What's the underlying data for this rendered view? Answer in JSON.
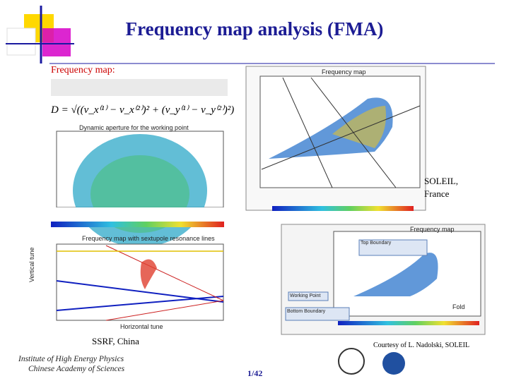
{
  "header": {
    "title": "Frequency map analysis (FMA)"
  },
  "body": {
    "frequency_map_label": "Frequency map:",
    "formula": "D = √((ν_x⁽¹⁾ − ν_x⁽²⁾)² + (ν_y⁽¹⁾ − ν_y⁽²⁾)²)",
    "soleil_caption": "SOLEIL, France",
    "ssrf_caption": "SSRF, China",
    "courtesy": "Courtesy of L. Nadolski, SOLEIL"
  },
  "figures": {
    "aperture_title": "Dynamic aperture for the working point",
    "ssrf_title": "Frequency map with sextupole resonance lines",
    "ssrf_ylabel": "Vertical tune",
    "ssrf_xlabel": "Horizontal tune",
    "soleil_top_title": "Frequency map",
    "soleil_bottom_title": "Frequency map",
    "top_boundary": "Top Boundary",
    "working_point": "Working Point",
    "bottom_boundary": "Bottom Boundary",
    "fold": "Fold"
  },
  "footer": {
    "institute": "Institute of High Energy Physics",
    "academy": "Chinese Academy of Sciences",
    "page": "1/42"
  }
}
